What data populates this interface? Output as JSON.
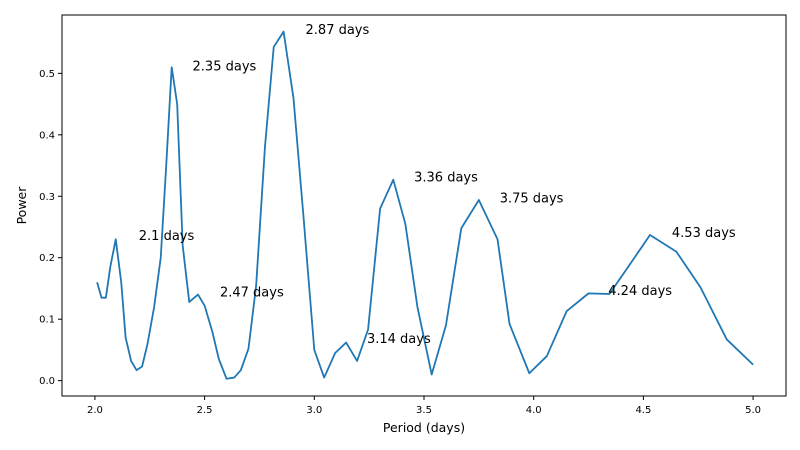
{
  "chart_data": {
    "type": "line",
    "title": "",
    "xlabel": "Period (days)",
    "ylabel": "Power",
    "xlim": [
      1.85,
      5.15
    ],
    "ylim": [
      -0.025,
      0.595
    ],
    "x_ticks": [
      2.0,
      2.5,
      3.0,
      3.5,
      4.0,
      4.5,
      5.0
    ],
    "x_tick_labels": [
      "2.0",
      "2.5",
      "3.0",
      "3.5",
      "4.0",
      "4.5",
      "5.0"
    ],
    "y_ticks": [
      0.0,
      0.1,
      0.2,
      0.3,
      0.4,
      0.5
    ],
    "y_tick_labels": [
      "0.0",
      "0.1",
      "0.2",
      "0.3",
      "0.4",
      "0.5"
    ],
    "grid": false,
    "series_color": "#1f77b4",
    "series": [
      {
        "x": [
          2.01,
          2.03,
          2.05,
          2.07,
          2.095,
          2.12,
          2.14,
          2.165,
          2.19,
          2.215,
          2.24,
          2.27,
          2.3,
          2.325,
          2.35,
          2.375,
          2.4,
          2.43,
          2.47,
          2.5,
          2.535,
          2.565,
          2.6,
          2.635,
          2.665,
          2.7,
          2.735,
          2.775,
          2.815,
          2.86,
          2.905,
          2.95,
          3.0,
          3.045,
          3.095,
          3.145,
          3.195,
          3.245,
          3.3,
          3.36,
          3.415,
          3.47,
          3.535,
          3.6,
          3.67,
          3.75,
          3.835,
          3.89,
          3.98,
          4.06,
          4.15,
          4.25,
          4.345,
          4.44,
          4.53,
          4.65,
          4.76,
          4.88,
          5.0
        ],
        "y": [
          0.16,
          0.135,
          0.135,
          0.185,
          0.23,
          0.16,
          0.07,
          0.032,
          0.017,
          0.023,
          0.06,
          0.12,
          0.2,
          0.35,
          0.51,
          0.45,
          0.22,
          0.128,
          0.14,
          0.122,
          0.08,
          0.035,
          0.003,
          0.005,
          0.017,
          0.052,
          0.155,
          0.38,
          0.543,
          0.568,
          0.46,
          0.27,
          0.05,
          0.005,
          0.045,
          0.062,
          0.032,
          0.083,
          0.28,
          0.327,
          0.255,
          0.12,
          0.01,
          0.09,
          0.248,
          0.294,
          0.23,
          0.092,
          0.012,
          0.04,
          0.113,
          0.142,
          0.141,
          0.19,
          0.237,
          0.21,
          0.152,
          0.067,
          0.026
        ]
      }
    ],
    "annotations": [
      {
        "text": "2.1 days",
        "x": 2.2,
        "y": 0.229
      },
      {
        "text": "2.35 days",
        "x": 2.445,
        "y": 0.505
      },
      {
        "text": "2.47 days",
        "x": 2.57,
        "y": 0.137
      },
      {
        "text": "2.87 days",
        "x": 2.96,
        "y": 0.564
      },
      {
        "text": "3.14 days",
        "x": 3.24,
        "y": 0.061
      },
      {
        "text": "3.36 days",
        "x": 3.455,
        "y": 0.324
      },
      {
        "text": "3.75 days",
        "x": 3.845,
        "y": 0.29
      },
      {
        "text": "4.24 days",
        "x": 4.34,
        "y": 0.139
      },
      {
        "text": "4.53 days",
        "x": 4.63,
        "y": 0.234
      }
    ]
  }
}
